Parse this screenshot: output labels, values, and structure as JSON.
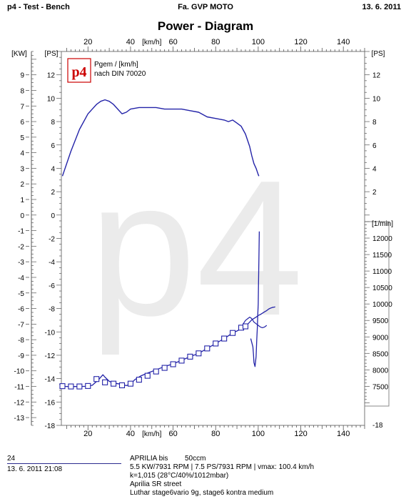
{
  "header": {
    "left": "p4 - Test - Bench",
    "center": "Fa. GVP MOTO",
    "right": "13. 6. 2011"
  },
  "chart_data": {
    "type": "line",
    "title": "Power - Diagram",
    "legend": {
      "line1": "Pgem / [km/h]",
      "line2": "nach DIN 70020",
      "logo": "p4",
      "placement": "top-left"
    },
    "watermark": "p4",
    "x_axis": {
      "label": "[km/h]",
      "range": [
        7.5,
        150
      ],
      "ticks": [
        20,
        40,
        60,
        80,
        100,
        120,
        140
      ]
    },
    "y_axes": {
      "kw": {
        "label": "[KW]",
        "range": [
          -13.5,
          10.5
        ],
        "ticks": [
          9,
          8,
          7,
          6,
          5,
          4,
          3,
          2,
          1,
          0,
          -1,
          -2,
          -3,
          -4,
          -5,
          -6,
          -7,
          -8,
          -9,
          -10,
          -11,
          -12,
          -13
        ]
      },
      "ps_left": {
        "label": "[PS]",
        "range": [
          -18,
          14
        ],
        "ticks": [
          12,
          10,
          8,
          6,
          4,
          2,
          0,
          -2,
          -4,
          -6,
          -8,
          -10,
          -12,
          -14,
          -16,
          -18
        ]
      },
      "ps_right": {
        "label": "[PS]",
        "range": [
          -18,
          14
        ],
        "ticks": [
          12,
          10,
          8,
          6,
          4,
          2
        ]
      },
      "rpm": {
        "label": "[1/min]",
        "range": [
          6900,
          12500
        ],
        "ticks": [
          12000,
          11500,
          11000,
          10500,
          10000,
          9500,
          9000,
          8500,
          8000,
          7500
        ],
        "end_label": "-18"
      }
    },
    "series": [
      {
        "kind": "power",
        "x": [
          8,
          12,
          16,
          20,
          24,
          26,
          28,
          30,
          32,
          34,
          36,
          38,
          40,
          44,
          48,
          52,
          56,
          60,
          64,
          68,
          72,
          76,
          80,
          84,
          86,
          88,
          90,
          92,
          94,
          96,
          97,
          98,
          99,
          99.5,
          100,
          100.3
        ],
        "y": [
          2.5,
          4.1,
          5.5,
          6.5,
          7.1,
          7.3,
          7.4,
          7.3,
          7.1,
          6.8,
          6.5,
          6.6,
          6.8,
          6.9,
          6.9,
          6.9,
          6.8,
          6.8,
          6.8,
          6.7,
          6.6,
          6.3,
          6.2,
          6.1,
          6.0,
          6.1,
          5.9,
          5.7,
          5.2,
          4.4,
          3.8,
          3.3,
          3.0,
          2.8,
          2.6,
          2.5
        ]
      },
      {
        "kind": "speed-rpm",
        "x": [
          8,
          10,
          13,
          16,
          19,
          22,
          25,
          27,
          28,
          30,
          32,
          34,
          36,
          38,
          40,
          42,
          45,
          48,
          52,
          56,
          60,
          64,
          68,
          72,
          76,
          80,
          84,
          88,
          90,
          92,
          93,
          94,
          95,
          96,
          97,
          98,
          99,
          100,
          101,
          102,
          103,
          104,
          105,
          106,
          107,
          107.5,
          108
        ],
        "y": [
          7500,
          7495,
          7493,
          7495,
          7500,
          7530,
          7700,
          7850,
          7780,
          7650,
          7600,
          7580,
          7560,
          7520,
          7560,
          7700,
          7820,
          7900,
          8000,
          8100,
          8180,
          8290,
          8400,
          8500,
          8650,
          8800,
          8950,
          9120,
          9180,
          9250,
          9280,
          9320,
          9380,
          9450,
          9520,
          9560,
          9600,
          9650,
          9680,
          9720,
          9760,
          9800,
          9850,
          9880,
          9900,
          9905,
          9910
        ]
      },
      {
        "kind": "speed-rpm-markers",
        "x": [
          8,
          12,
          16,
          20,
          24,
          28,
          32,
          36,
          40,
          44,
          48,
          52,
          56,
          60,
          64,
          68,
          72,
          76,
          80,
          84,
          88,
          92,
          94
        ],
        "y": [
          7505,
          7495,
          7495,
          7510,
          7720,
          7620,
          7580,
          7530,
          7580,
          7700,
          7820,
          7950,
          8060,
          8170,
          8280,
          8400,
          8500,
          8650,
          8800,
          8950,
          9120,
          9280,
          9320
        ]
      },
      {
        "kind": "rpm-trace",
        "x": [
          96.5,
          97.5,
          97.8,
          98,
          98.5,
          99,
          99.3,
          99.6,
          99.8,
          100,
          100.1,
          100.3,
          100.5
        ],
        "y": [
          8950,
          8700,
          8450,
          8220,
          8100,
          8400,
          8900,
          9300,
          9700,
          10000,
          10500,
          11300,
          12200
        ]
      },
      {
        "kind": "shift-overlap",
        "x": [
          93,
          94,
          95,
          96,
          96.5,
          97,
          97.5,
          98,
          99,
          100,
          101,
          102,
          103,
          104
        ],
        "y": [
          9400,
          9500,
          9550,
          9600,
          9580,
          9550,
          9500,
          9450,
          9400,
          9350,
          9300,
          9280,
          9300,
          9350
        ]
      }
    ]
  },
  "footer": {
    "run_no": "24",
    "datetime": "13. 6. 2011  21:08",
    "vehicle": "APRILIA bis",
    "ccm": "50ccm",
    "result": "5.5 KW/7931 RPM  |  7.5 PS/7931 RPM  |  vmax: 100.4 km/h",
    "conditions": "k=1,015 (28°C/40%/1012mbar)",
    "model": "Aprilia SR street",
    "setup": "Luthar stage6vario 9g, stage6 kontra medium"
  }
}
